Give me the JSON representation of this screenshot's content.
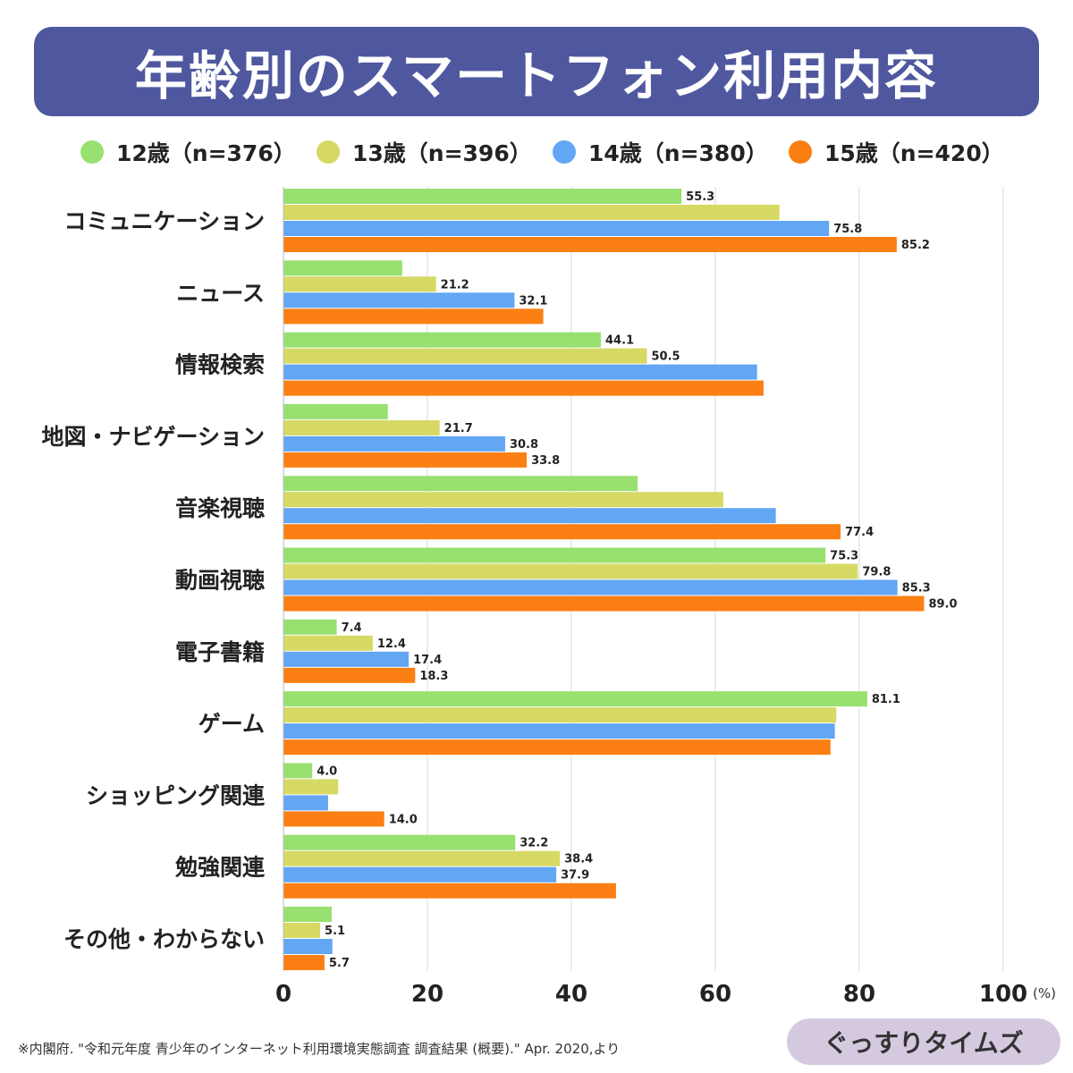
{
  "title": "年齢別のスマートフォン利用内容",
  "legend": [
    "12歳（n=376）",
    "13歳（n=396）",
    "14歳（n=380）",
    "15歳（n=420）"
  ],
  "source": "※内閣府. \"令和元年度 青少年のインターネット利用環境実態調査 調査結果 (概要).\" Apr. 2020,より",
  "brand": "ぐっすりタイムズ",
  "chart_data": {
    "type": "bar",
    "orientation": "horizontal",
    "categories": [
      "コミュニケーション",
      "ニュース",
      "情報検索",
      "地図・ナビゲーション",
      "音楽視聴",
      "動画視聴",
      "電子書籍",
      "ゲーム",
      "ショッピング関連",
      "勉強関連",
      "その他・わからない"
    ],
    "series": [
      {
        "name": "12歳（n=376）",
        "color": "#98e070",
        "values": [
          55.3,
          16.5,
          44.1,
          14.5,
          49.2,
          75.3,
          7.4,
          81.1,
          4.0,
          32.2,
          6.7
        ],
        "labels": [
          "55.3",
          "",
          "44.1",
          "",
          "",
          "75.3",
          "7.4",
          "81.1",
          "4.0",
          "32.2",
          ""
        ]
      },
      {
        "name": "13歳（n=396）",
        "color": "#d6d964",
        "values": [
          68.9,
          21.2,
          50.5,
          21.7,
          61.1,
          79.8,
          12.4,
          76.8,
          7.6,
          38.4,
          5.1
        ],
        "labels": [
          "",
          "21.2",
          "50.5",
          "21.7",
          "",
          "79.8",
          "12.4",
          "",
          "",
          "38.4",
          "5.1"
        ]
      },
      {
        "name": "14歳（n=380）",
        "color": "#62a6f4",
        "values": [
          75.8,
          32.1,
          65.8,
          30.8,
          68.4,
          85.3,
          17.4,
          76.6,
          6.2,
          37.9,
          6.8
        ],
        "labels": [
          "75.8",
          "32.1",
          "",
          "30.8",
          "",
          "85.3",
          "17.4",
          "",
          "",
          "37.9",
          ""
        ]
      },
      {
        "name": "15歳（n=420）",
        "color": "#fb7f12",
        "values": [
          85.2,
          36.1,
          66.7,
          33.8,
          77.4,
          89.0,
          18.3,
          76.0,
          14.0,
          46.2,
          5.7
        ],
        "labels": [
          "85.2",
          "",
          "",
          "33.8",
          "77.4",
          "89.0",
          "18.3",
          "",
          "14.0",
          "",
          "5.7"
        ]
      }
    ],
    "xlim": [
      0,
      100
    ],
    "xticks": [
      "0",
      "20",
      "40",
      "60",
      "80",
      "100"
    ],
    "xunit": "(%)",
    "grid": true,
    "legend_position": "top"
  }
}
